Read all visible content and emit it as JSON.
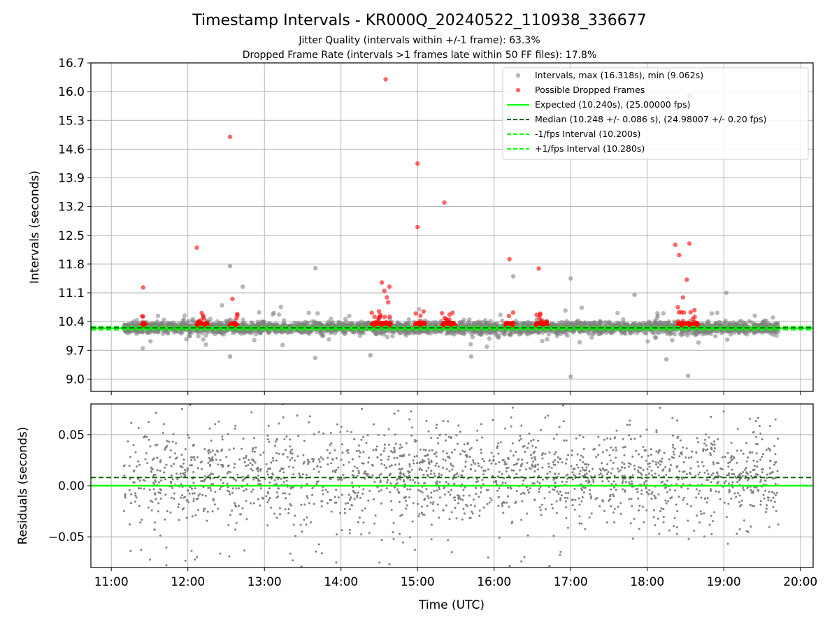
{
  "title": "Timestamp Intervals - KR000Q_20240522_110938_336677",
  "subtitle_1": "Jitter Quality (intervals within +/-1 frame): 63.3%",
  "subtitle_2": "Dropped Frame Rate (intervals >1 frames late within 50 FF files): 17.8%",
  "colors": {
    "scatter": "#808080",
    "dropped": "#ff0000",
    "expected": "#00ff00",
    "median": "#006400",
    "bounds": "#00ff00",
    "grid": "#b0b0b0"
  },
  "chart_data": [
    {
      "type": "scatter",
      "panel": "intervals",
      "ylabel": "Intervals (seconds)",
      "ylim": [
        8.7,
        16.7
      ],
      "yticks": [
        "9.0",
        "9.7",
        "10.4",
        "11.1",
        "11.8",
        "12.5",
        "13.2",
        "13.9",
        "14.6",
        "15.3",
        "16.0",
        "16.7"
      ],
      "xlim": [
        "10:44",
        "20:10"
      ],
      "xticks": [
        "11:00",
        "12:00",
        "13:00",
        "14:00",
        "15:00",
        "16:00",
        "17:00",
        "18:00",
        "19:00",
        "20:00"
      ],
      "grid": true,
      "legend_position": "top-right",
      "legend": [
        {
          "label": "Intervals, max (16.318s), min (9.062s)",
          "kind": "dot",
          "color": "#808080"
        },
        {
          "label": "Possible Dropped Frames",
          "kind": "dot",
          "color": "#ff0000"
        },
        {
          "label": "Expected (10.240s), (25.00000 fps)",
          "kind": "line",
          "color": "#00ff00"
        },
        {
          "label": "Median (10.248 +/- 0.086 s), (24.98007 +/- 0.20 fps)",
          "kind": "dash",
          "color": "#006400"
        },
        {
          "label": "-1/fps Interval (10.200s)",
          "kind": "dash",
          "color": "#00ff00"
        },
        {
          "label": "+1/fps Interval (10.280s)",
          "kind": "dash",
          "color": "#00ff00"
        }
      ],
      "reference_lines": {
        "expected": 10.24,
        "median": 10.248,
        "lower": 10.2,
        "upper": 10.28
      },
      "intervals_series": {
        "name": "Intervals, max (16.318s), min (9.062s)",
        "description": "about 2900 grey points between 11:10 and 19:43, clustered around 10.25 s",
        "outliers": [
          {
            "x": "12:33",
            "y": 11.75
          },
          {
            "x": "12:33",
            "y": 9.55
          },
          {
            "x": "12:43",
            "y": 11.25
          },
          {
            "x": "13:40",
            "y": 11.7
          },
          {
            "x": "14:23",
            "y": 9.58
          },
          {
            "x": "15:42",
            "y": 9.55
          },
          {
            "x": "16:15",
            "y": 11.5
          },
          {
            "x": "17:00",
            "y": 11.45
          },
          {
            "x": "17:00",
            "y": 9.06
          },
          {
            "x": "17:50",
            "y": 11.05
          },
          {
            "x": "18:15",
            "y": 9.48
          },
          {
            "x": "18:32",
            "y": 9.08
          },
          {
            "x": "19:02",
            "y": 11.1
          }
        ]
      },
      "dropped_series": {
        "name": "Possible Dropped Frames",
        "clusters": [
          {
            "from": "11:24",
            "to": "11:27"
          },
          {
            "from": "12:07",
            "to": "12:16"
          },
          {
            "from": "12:33",
            "to": "12:39"
          },
          {
            "from": "14:24",
            "to": "14:39"
          },
          {
            "from": "14:58",
            "to": "15:06"
          },
          {
            "from": "15:19",
            "to": "15:30"
          },
          {
            "from": "16:09",
            "to": "16:15"
          },
          {
            "from": "16:33",
            "to": "16:42"
          },
          {
            "from": "18:24",
            "to": "18:40"
          }
        ],
        "outliers": [
          {
            "x": "11:25",
            "y": 11.23
          },
          {
            "x": "12:07",
            "y": 12.2
          },
          {
            "x": "12:33",
            "y": 14.9
          },
          {
            "x": "12:35",
            "y": 10.95
          },
          {
            "x": "14:32",
            "y": 11.35
          },
          {
            "x": "14:34",
            "y": 11.15
          },
          {
            "x": "14:36",
            "y": 10.99
          },
          {
            "x": "14:37",
            "y": 10.87
          },
          {
            "x": "14:38",
            "y": 11.25
          },
          {
            "x": "14:35",
            "y": 16.3
          },
          {
            "x": "15:00",
            "y": 14.25
          },
          {
            "x": "15:00",
            "y": 12.7
          },
          {
            "x": "15:21",
            "y": 13.3
          },
          {
            "x": "16:12",
            "y": 11.92
          },
          {
            "x": "16:35",
            "y": 11.69
          },
          {
            "x": "18:22",
            "y": 12.27
          },
          {
            "x": "18:25",
            "y": 12.02
          },
          {
            "x": "18:28",
            "y": 10.99
          },
          {
            "x": "18:31",
            "y": 11.42
          },
          {
            "x": "18:33",
            "y": 12.3
          },
          {
            "x": "18:33",
            "y": 15.9
          },
          {
            "x": "18:24",
            "y": 10.75
          },
          {
            "x": "18:37",
            "y": 10.68
          }
        ]
      }
    },
    {
      "type": "scatter",
      "panel": "residuals",
      "xlabel": "Time (UTC)",
      "ylabel": "Residuals (seconds)",
      "ylim": [
        -0.08,
        0.08
      ],
      "yticks": [
        "−0.05",
        "0.00",
        "0.05"
      ],
      "xlim": [
        "10:44",
        "20:10"
      ],
      "xticks": [
        "11:00",
        "12:00",
        "13:00",
        "14:00",
        "15:00",
        "16:00",
        "17:00",
        "18:00",
        "19:00",
        "20:00"
      ],
      "grid": true,
      "reference_lines": {
        "zero": 0.0,
        "median_offset": 0.008
      },
      "series": {
        "name": "Residuals",
        "description": "about 2000 grey points between 11:10 and 19:43, spread between -0.08 and 0.08 s, densest near 0.00 to 0.02"
      }
    }
  ]
}
